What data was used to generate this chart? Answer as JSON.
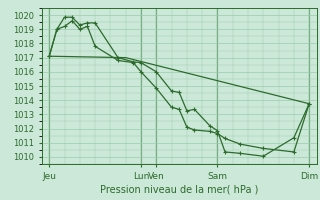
{
  "background_color": "#cce8d8",
  "grid_color": "#99ccaa",
  "line_color": "#2d6b2d",
  "ylabel_text": "Pression niveau de la mer( hPa )",
  "ylim": [
    1009.5,
    1020.5
  ],
  "yticks": [
    1010,
    1011,
    1012,
    1013,
    1014,
    1015,
    1016,
    1017,
    1018,
    1019,
    1020
  ],
  "xlim": [
    0,
    18
  ],
  "xtick_labels": [
    "Jeu",
    "Lun",
    "Ven",
    "Sam",
    "Dim"
  ],
  "xtick_positions": [
    0.5,
    6.5,
    7.5,
    11.5,
    17.5
  ],
  "vline_positions": [
    0.5,
    6.5,
    7.5,
    11.5,
    17.5
  ],
  "series1_x": [
    0.5,
    1.0,
    1.5,
    2.0,
    2.5,
    3.0,
    3.5,
    5.0,
    6.0,
    6.5,
    7.5,
    8.5,
    9.0,
    9.5,
    10.0,
    11.0,
    11.5,
    12.0,
    13.0,
    14.5,
    16.5,
    17.5
  ],
  "series1_y": [
    1017.1,
    1019.0,
    1019.85,
    1019.85,
    1019.3,
    1019.45,
    1019.45,
    1017.0,
    1016.7,
    1016.65,
    1016.0,
    1014.65,
    1014.55,
    1013.25,
    1013.35,
    1012.2,
    1011.85,
    1010.35,
    1010.25,
    1010.05,
    1011.35,
    1013.75
  ],
  "series2_x": [
    0.5,
    1.0,
    1.5,
    2.0,
    2.5,
    3.0,
    3.5,
    5.0,
    6.0,
    6.5,
    7.5,
    8.5,
    9.0,
    9.5,
    10.0,
    11.0,
    11.5,
    12.0,
    13.0,
    14.5,
    16.5,
    17.5
  ],
  "series2_y": [
    1017.1,
    1019.0,
    1019.2,
    1019.6,
    1019.0,
    1019.2,
    1017.8,
    1016.8,
    1016.65,
    1016.0,
    1014.85,
    1013.5,
    1013.35,
    1012.1,
    1011.9,
    1011.8,
    1011.65,
    1011.3,
    1010.9,
    1010.6,
    1010.35,
    1013.75
  ],
  "series3_x": [
    0.5,
    5.5,
    17.5
  ],
  "series3_y": [
    1017.1,
    1017.0,
    1013.75
  ]
}
